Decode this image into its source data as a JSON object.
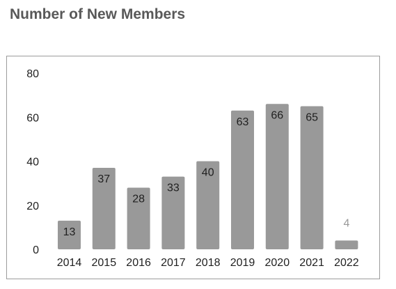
{
  "title": "Number of New Members",
  "colors": {
    "bar": "#999999",
    "label_inside": "#1f1f1f",
    "label_outside": "#999999",
    "title": "#595959",
    "frame": "#9b9b9b"
  },
  "chart_data": {
    "type": "bar",
    "title": "Number of New Members",
    "categories": [
      "2014",
      "2015",
      "2016",
      "2017",
      "2018",
      "2019",
      "2020",
      "2021",
      "2022"
    ],
    "values": [
      13,
      37,
      28,
      33,
      40,
      63,
      66,
      65,
      4
    ],
    "xlabel": "",
    "ylabel": "",
    "ylim": [
      0,
      80
    ],
    "yticks": [
      0,
      20,
      40,
      60,
      80
    ],
    "grid": false,
    "legend": "none",
    "data_labels": "inside-end"
  }
}
